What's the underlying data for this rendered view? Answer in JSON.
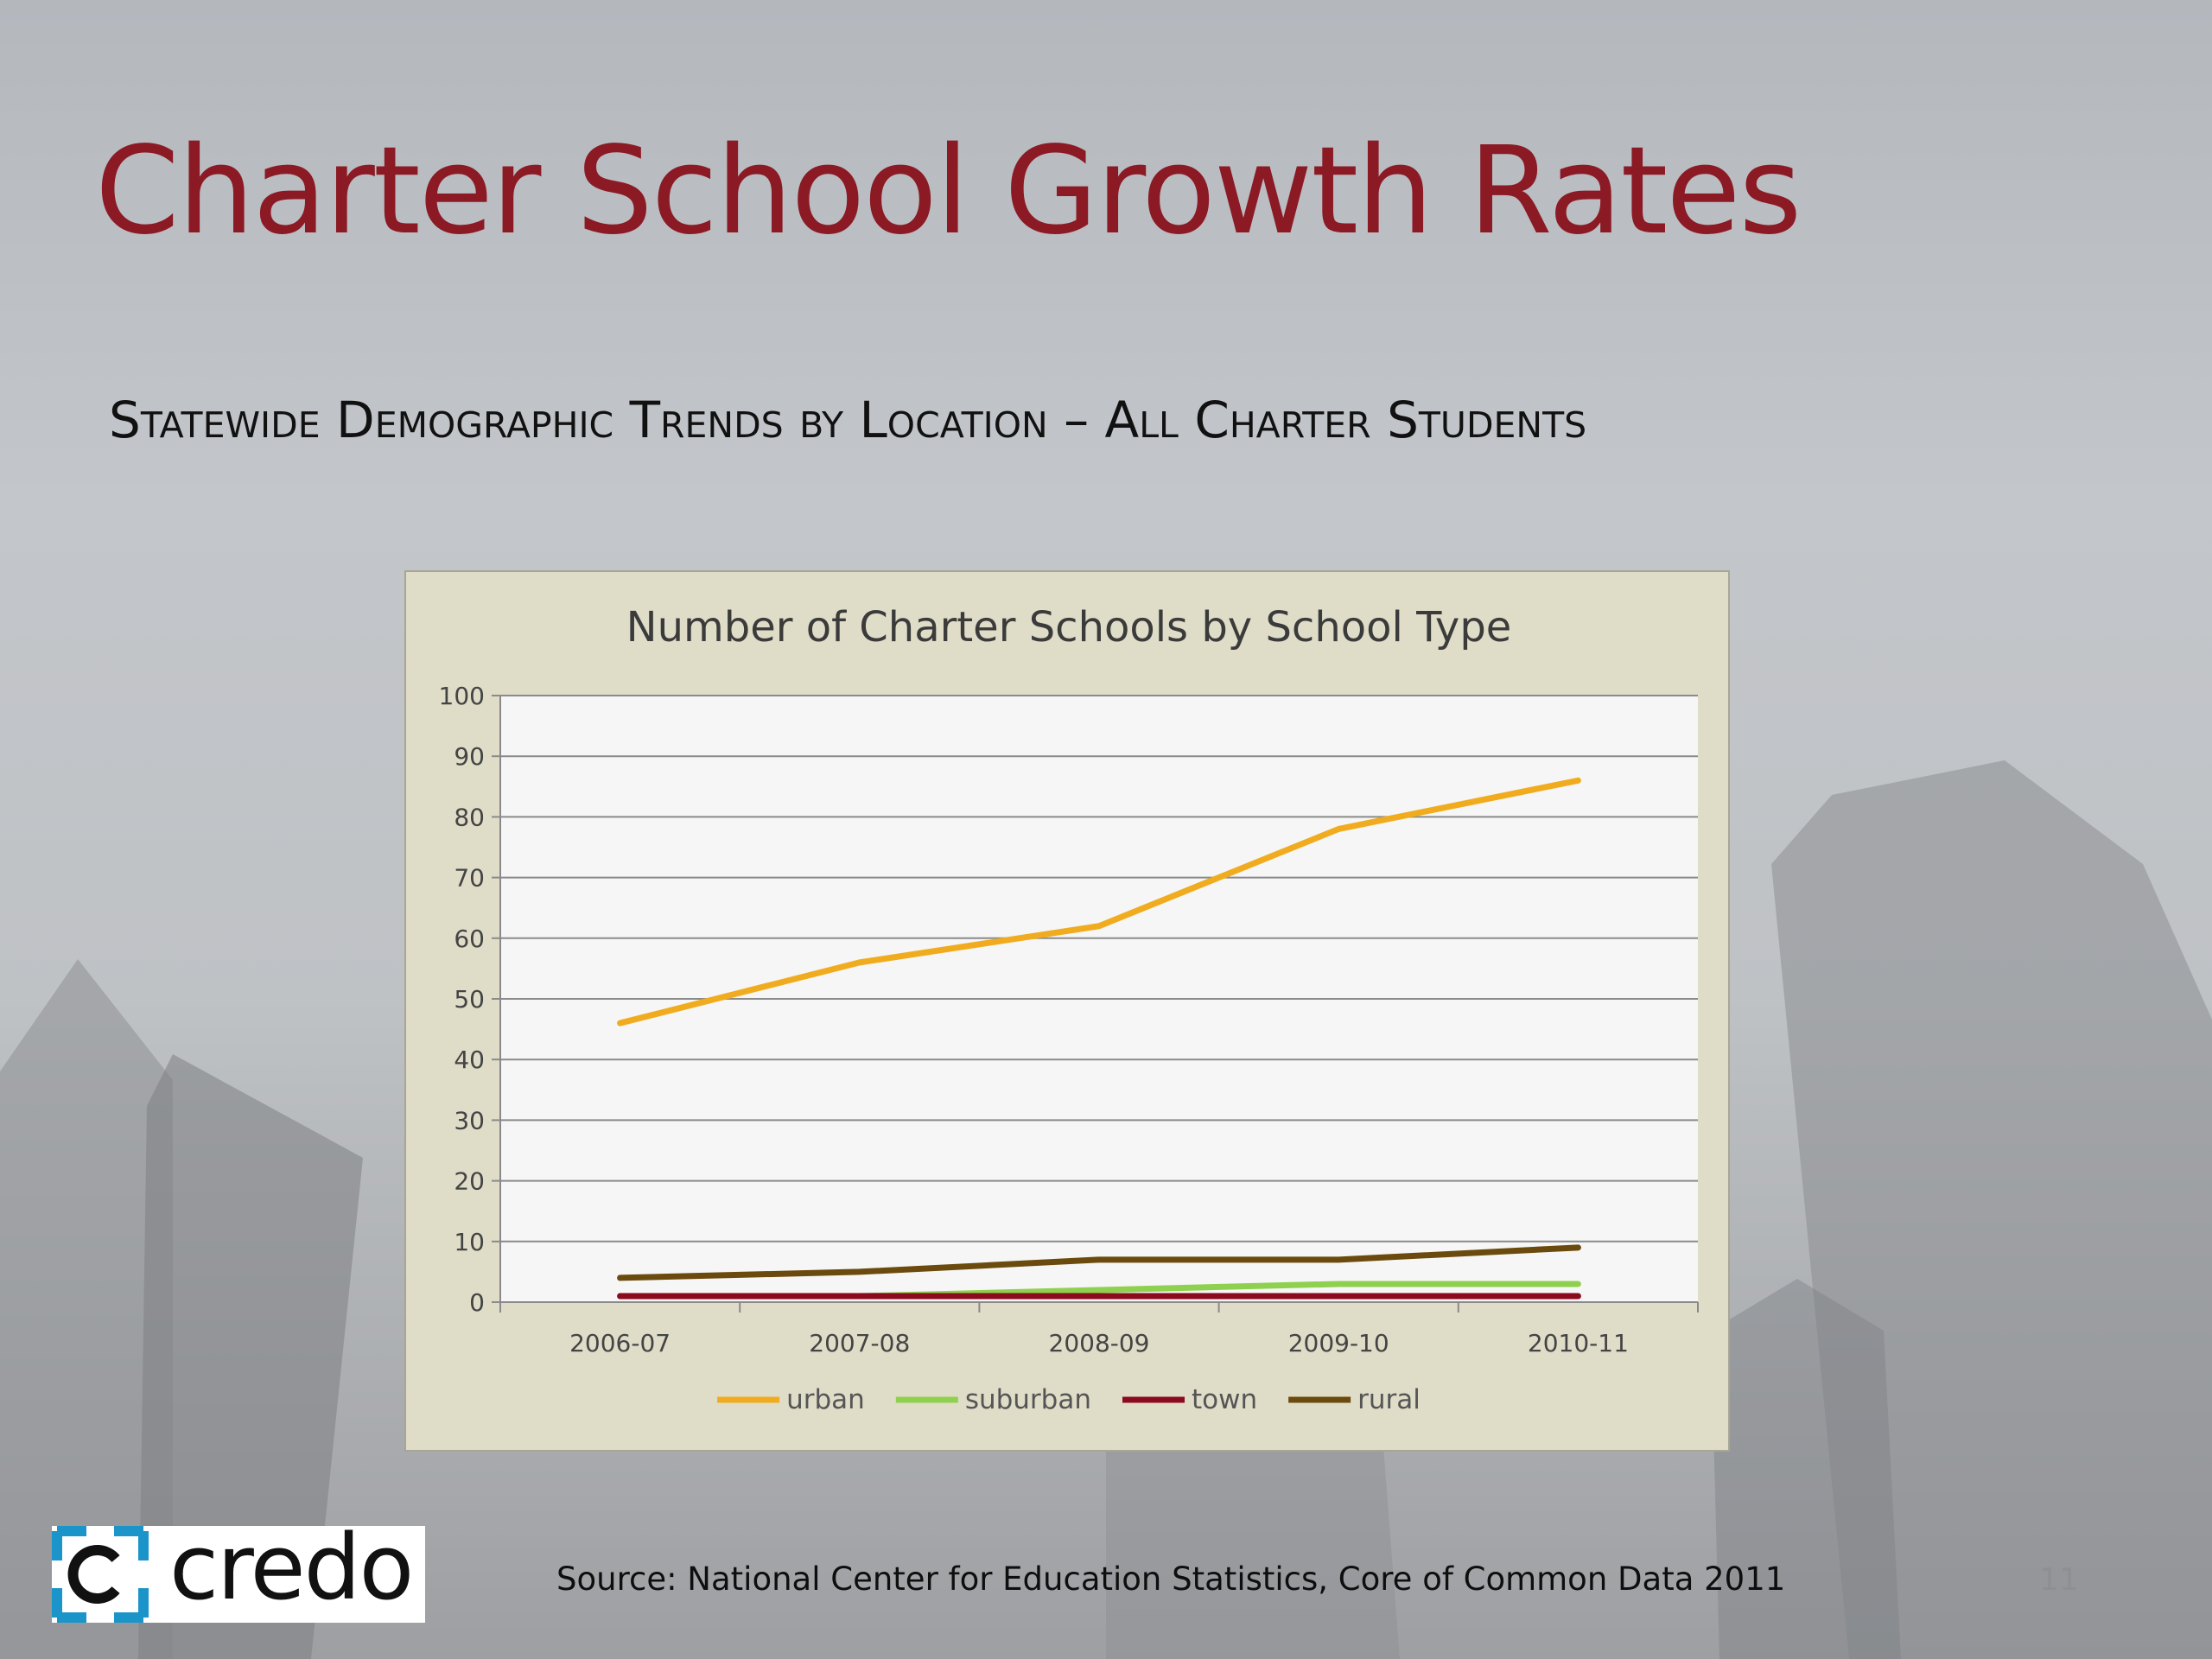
{
  "slide": {
    "title": "Charter School Growth Rates",
    "subtitle": "Statewide Demographic Trends by Location – All Charter Students",
    "source": "Source:  National Center for Education Statistics, Core of Common Data 2011",
    "page_number": "11",
    "logo_text": "credo",
    "colors": {
      "title": "#8b1a24",
      "logo_blue": "#1b95c9"
    }
  },
  "chart_data": {
    "type": "line",
    "title": "Number of Charter Schools by School Type",
    "categories": [
      "2006-07",
      "2007-08",
      "2008-09",
      "2009-10",
      "2010-11"
    ],
    "ylim": [
      0,
      100
    ],
    "yticks": [
      0,
      10,
      20,
      30,
      40,
      50,
      60,
      70,
      80,
      90,
      100
    ],
    "grid": true,
    "legend_position": "bottom",
    "series": [
      {
        "name": "urban",
        "color": "#f0ac1e",
        "values": [
          46,
          56,
          62,
          78,
          86
        ]
      },
      {
        "name": "suburban",
        "color": "#8fd14f",
        "values": [
          1,
          1,
          2,
          3,
          3
        ]
      },
      {
        "name": "town",
        "color": "#8b0a1e",
        "values": [
          1,
          1,
          1,
          1,
          1
        ]
      },
      {
        "name": "rural",
        "color": "#6b4a0e",
        "values": [
          4,
          5,
          7,
          7,
          9
        ]
      }
    ]
  }
}
